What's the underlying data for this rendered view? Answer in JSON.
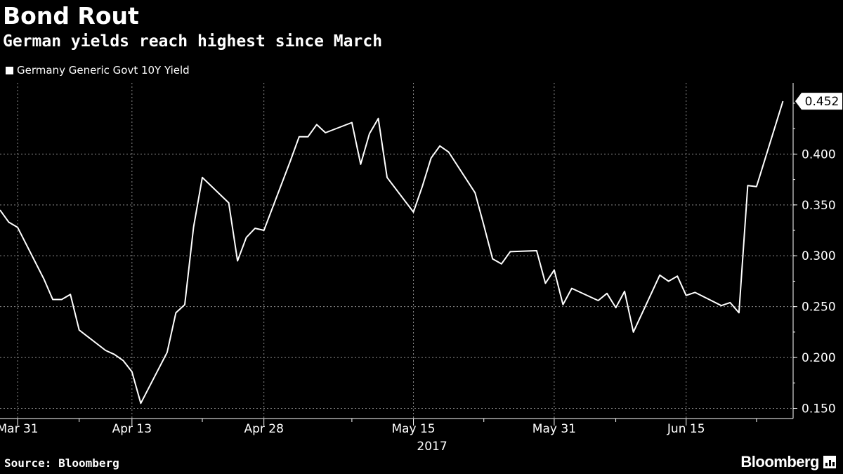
{
  "header": {
    "title": "Bond Rout",
    "subtitle": "German yields reach highest since March"
  },
  "legend": {
    "label": "Germany Generic Govt 10Y Yield"
  },
  "footer": {
    "source": "Source: Bloomberg",
    "brand": "Bloomberg",
    "brand_icon": "bloomberg-terminal-icon"
  },
  "colors": {
    "background": "#000000",
    "line": "#ffffff",
    "grid": "#8c8c8c",
    "text": "#ffffff"
  },
  "chart_data": {
    "type": "line",
    "title": "Bond Rout",
    "subtitle": "German yields reach highest since March",
    "xlabel": "2017",
    "ylabel": "",
    "grid": true,
    "legend_position": "top-left",
    "ylim": [
      0.14,
      0.47
    ],
    "xlim": [
      "2017-03-29",
      "2017-06-27"
    ],
    "yticks": [
      0.15,
      0.2,
      0.25,
      0.3,
      0.35,
      0.4
    ],
    "ytick_labels": [
      "0.150",
      "0.200",
      "0.250",
      "0.300",
      "0.350",
      "0.400"
    ],
    "xticks": [
      {
        "date": "2017-03-31",
        "label": "Mar 31"
      },
      {
        "date": "2017-04-13",
        "label": "Apr 13"
      },
      {
        "date": "2017-04-28",
        "label": "Apr 28"
      },
      {
        "date": "2017-05-15",
        "label": "May 15"
      },
      {
        "date": "2017-05-31",
        "label": "May 31"
      },
      {
        "date": "2017-06-15",
        "label": "Jun 15"
      }
    ],
    "year_label": "2017",
    "last_value_label": "0.452",
    "series": [
      {
        "name": "Germany Generic Govt 10Y Yield",
        "points": [
          [
            "2017-03-29",
            0.345
          ],
          [
            "2017-03-30",
            0.333
          ],
          [
            "2017-03-31",
            0.328
          ],
          [
            "2017-04-03",
            0.277
          ],
          [
            "2017-04-04",
            0.257
          ],
          [
            "2017-04-05",
            0.257
          ],
          [
            "2017-04-06",
            0.262
          ],
          [
            "2017-04-07",
            0.227
          ],
          [
            "2017-04-10",
            0.207
          ],
          [
            "2017-04-11",
            0.203
          ],
          [
            "2017-04-12",
            0.197
          ],
          [
            "2017-04-13",
            0.186
          ],
          [
            "2017-04-14",
            0.155
          ],
          [
            "2017-04-17",
            0.205
          ],
          [
            "2017-04-18",
            0.244
          ],
          [
            "2017-04-19",
            0.252
          ],
          [
            "2017-04-20",
            0.328
          ],
          [
            "2017-04-21",
            0.377
          ],
          [
            "2017-04-24",
            0.352
          ],
          [
            "2017-04-25",
            0.295
          ],
          [
            "2017-04-26",
            0.318
          ],
          [
            "2017-04-27",
            0.327
          ],
          [
            "2017-04-28",
            0.325
          ],
          [
            "2017-05-01",
            0.393
          ],
          [
            "2017-05-02",
            0.417
          ],
          [
            "2017-05-03",
            0.417
          ],
          [
            "2017-05-04",
            0.429
          ],
          [
            "2017-05-05",
            0.421
          ],
          [
            "2017-05-08",
            0.431
          ],
          [
            "2017-05-09",
            0.39
          ],
          [
            "2017-05-10",
            0.42
          ],
          [
            "2017-05-11",
            0.435
          ],
          [
            "2017-05-12",
            0.377
          ],
          [
            "2017-05-15",
            0.343
          ],
          [
            "2017-05-16",
            0.368
          ],
          [
            "2017-05-17",
            0.396
          ],
          [
            "2017-05-18",
            0.408
          ],
          [
            "2017-05-19",
            0.402
          ],
          [
            "2017-05-22",
            0.362
          ],
          [
            "2017-05-23",
            0.33
          ],
          [
            "2017-05-24",
            0.297
          ],
          [
            "2017-05-25",
            0.292
          ],
          [
            "2017-05-26",
            0.304
          ],
          [
            "2017-05-29",
            0.305
          ],
          [
            "2017-05-30",
            0.273
          ],
          [
            "2017-05-31",
            0.286
          ],
          [
            "2017-06-01",
            0.252
          ],
          [
            "2017-06-02",
            0.268
          ],
          [
            "2017-06-05",
            0.256
          ],
          [
            "2017-06-06",
            0.263
          ],
          [
            "2017-06-07",
            0.249
          ],
          [
            "2017-06-08",
            0.265
          ],
          [
            "2017-06-09",
            0.225
          ],
          [
            "2017-06-12",
            0.281
          ],
          [
            "2017-06-13",
            0.275
          ],
          [
            "2017-06-14",
            0.28
          ],
          [
            "2017-06-15",
            0.261
          ],
          [
            "2017-06-16",
            0.264
          ],
          [
            "2017-06-19",
            0.251
          ],
          [
            "2017-06-20",
            0.254
          ],
          [
            "2017-06-21",
            0.244
          ],
          [
            "2017-06-22",
            0.369
          ],
          [
            "2017-06-23",
            0.368
          ],
          [
            "2017-06-26",
            0.452
          ]
        ]
      }
    ]
  }
}
